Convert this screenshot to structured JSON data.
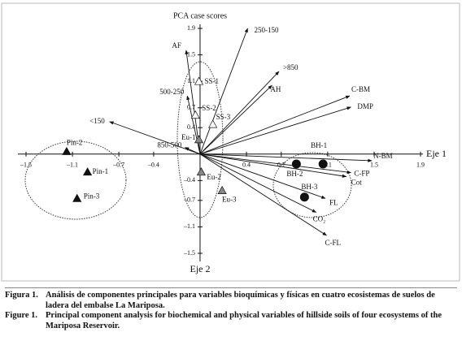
{
  "chart_data": {
    "type": "biplot",
    "title": "PCA case scores",
    "xlabel": "Eje 1",
    "ylabel": "Eje 2",
    "xlim": [
      -1.5,
      1.9
    ],
    "ylim": [
      -1.5,
      1.9
    ],
    "xticks": [
      {
        "value": -1.5,
        "label": "–1.5"
      },
      {
        "value": -1.1,
        "label": "–1.1"
      },
      {
        "value": -0.7,
        "label": "–0.7"
      },
      {
        "value": -0.4,
        "label": "–0.4"
      },
      0.4,
      0.7,
      1.1,
      1.5,
      1.9
    ],
    "yticks": [
      {
        "value": -1.5,
        "label": "–1.5"
      },
      {
        "value": -1.1,
        "label": "–1.1"
      },
      {
        "value": -0.7,
        "label": "–0.7"
      },
      {
        "value": -0.4,
        "label": "–0.4"
      },
      0.4,
      0.7,
      1.1,
      1.5,
      1.9
    ],
    "vectors": [
      {
        "label": "250-150",
        "x": 0.41,
        "y": 1.9
      },
      {
        "label": ">850",
        "x": 0.68,
        "y": 1.25
      },
      {
        "label": "AH",
        "x": 0.62,
        "y": 1.04
      },
      {
        "label": "C-BM",
        "x": 1.29,
        "y": 0.88
      },
      {
        "label": "DMP",
        "x": 1.3,
        "y": 0.71
      },
      {
        "label": "AF",
        "x": -0.12,
        "y": 1.57
      },
      {
        "label": "500-250",
        "x": -0.11,
        "y": 0.88
      },
      {
        "label": "<150",
        "x": -0.78,
        "y": 0.49
      },
      {
        "label": "850-500",
        "x": -0.13,
        "y": 0.1
      },
      {
        "label": "N-BM",
        "x": 1.48,
        "y": -0.1
      },
      {
        "label": "C-FP",
        "x": 1.3,
        "y": -0.28
      },
      {
        "label": "Cot",
        "x": 1.26,
        "y": -0.34
      },
      {
        "label": "FL",
        "x": 1.08,
        "y": -0.67
      },
      {
        "label": "CO₂",
        "x": 1.0,
        "y": -0.88
      },
      {
        "label": "C-FL",
        "x": 1.09,
        "y": -1.23
      }
    ],
    "points": [
      {
        "label": "Pin-2",
        "x": -1.15,
        "y": 0.04,
        "marker": "triangle",
        "color": "#111"
      },
      {
        "label": "Pin-1",
        "x": -0.97,
        "y": -0.27,
        "marker": "triangle",
        "color": "#111"
      },
      {
        "label": "Pin-3",
        "x": -1.06,
        "y": -0.67,
        "marker": "triangle",
        "color": "#111"
      },
      {
        "label": "SS-1",
        "x": -0.01,
        "y": 1.1,
        "marker": "triangle",
        "color": "#fff"
      },
      {
        "label": "SS-2",
        "x": -0.04,
        "y": 0.59,
        "marker": "triangle",
        "color": "#fff"
      },
      {
        "label": "SS-3",
        "x": 0.11,
        "y": 0.45,
        "marker": "triangle",
        "color": "#fff"
      },
      {
        "label": "Eu-1",
        "x": -0.01,
        "y": 0.22,
        "marker": "triangle",
        "color": "#888"
      },
      {
        "label": "Eu-2",
        "x": 0.01,
        "y": -0.27,
        "marker": "triangle",
        "color": "#888"
      },
      {
        "label": "Eu-3",
        "x": 0.19,
        "y": -0.55,
        "marker": "triangle",
        "color": "#888"
      },
      {
        "label": "BH-1",
        "x": 1.06,
        "y": -0.15,
        "marker": "circle",
        "color": "#111"
      },
      {
        "label": "BH-2",
        "x": 0.83,
        "y": -0.15,
        "marker": "circle",
        "color": "#111"
      },
      {
        "label": "BH-3",
        "x": 0.9,
        "y": -0.65,
        "marker": "circle",
        "color": "#111"
      }
    ]
  },
  "caption": [
    {
      "label": "Figura 1.",
      "text": "Análisis de componentes principales para variables bioquímicas y físicas en cuatro ecosistemas de suelos de ladera del embalse La Mariposa."
    },
    {
      "label": "Figure 1.",
      "text": "Principal component analysis for biochemical and physical variables of hillside soils of four ecosystems of the Mariposa Reservoir."
    }
  ]
}
